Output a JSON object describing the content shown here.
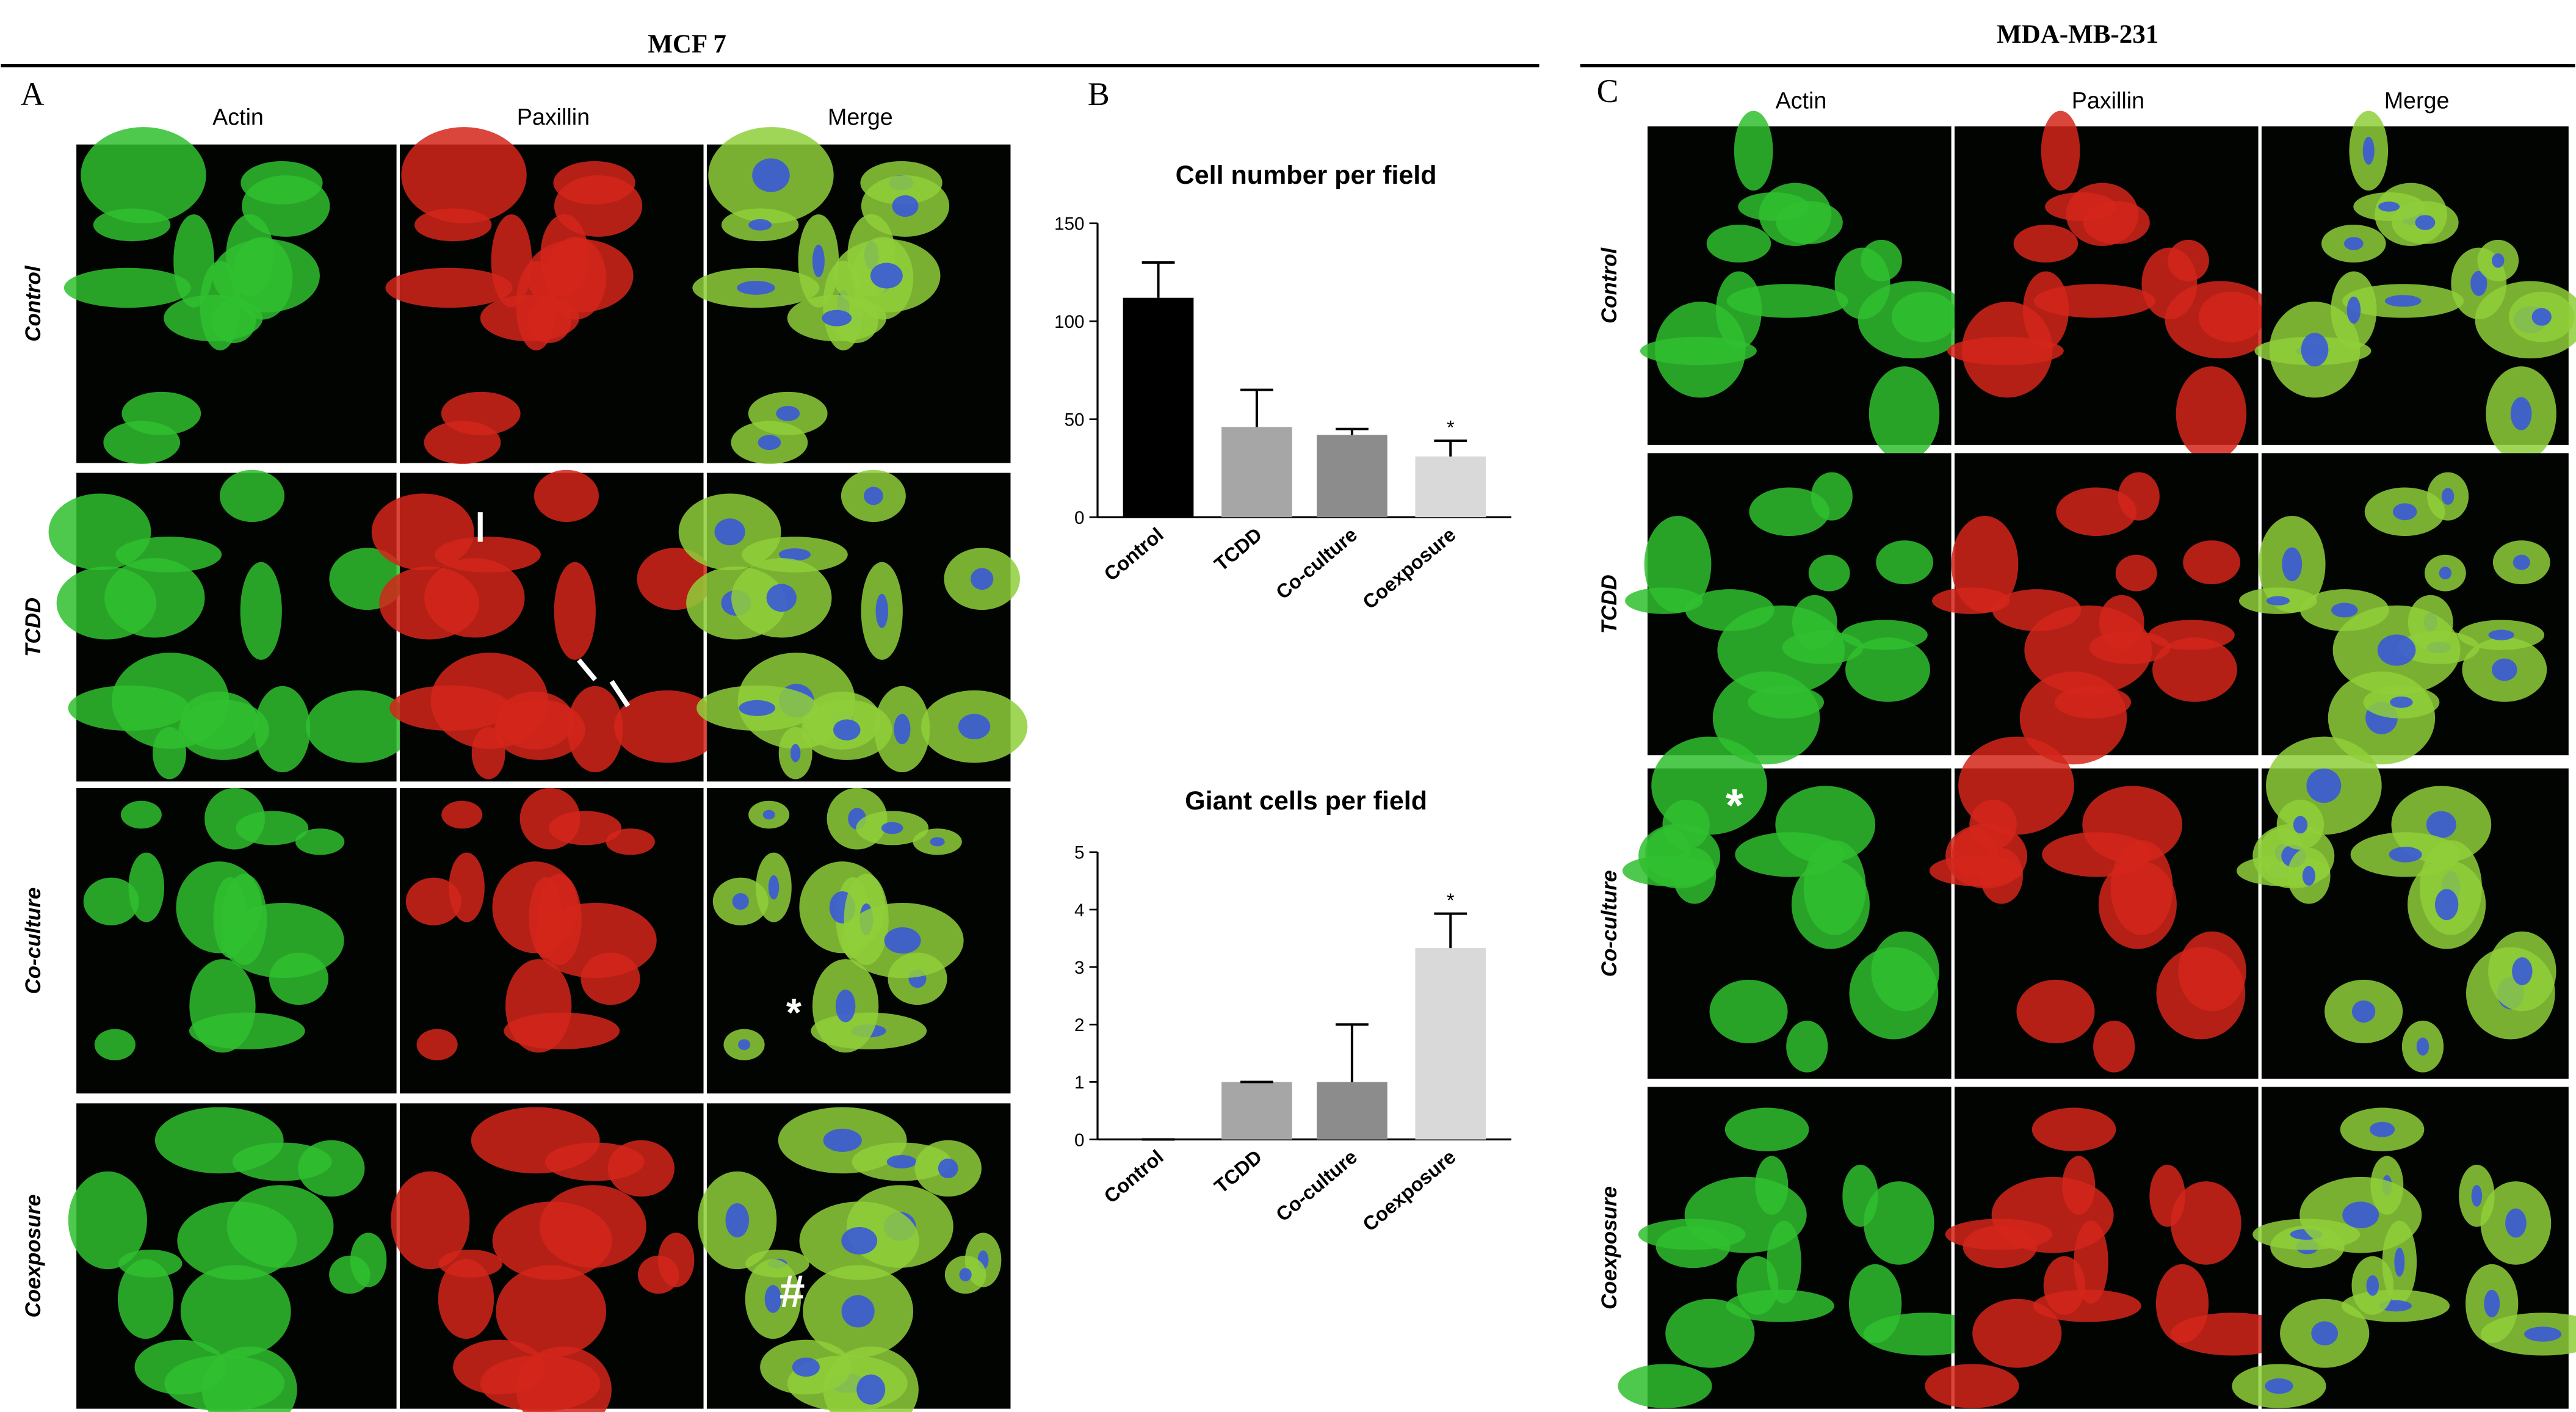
{
  "figure": {
    "mcf7": {
      "title": "MCF 7",
      "panel_label": "A",
      "columns": [
        "Actin",
        "Paxillin",
        "Merge"
      ],
      "rows": [
        "Control",
        "TCDD",
        "Co-culture",
        "Coexposure"
      ],
      "marks": [
        "*",
        "#"
      ]
    },
    "mda": {
      "title": "MDA-MB-231",
      "panel_label": "C",
      "columns": [
        "Actin",
        "Paxillin",
        "Merge"
      ],
      "rows": [
        "Control",
        "TCDD",
        "Co-culture",
        "Coexposure"
      ],
      "marks": [
        "*"
      ]
    },
    "panel_b_label": "B"
  },
  "chart_data": [
    {
      "type": "bar",
      "title": "Cell number per field",
      "categories": [
        "Control",
        "TCDD",
        "Co-culture",
        "Coexposure"
      ],
      "values": [
        112,
        46,
        42,
        31
      ],
      "errors": [
        18,
        19,
        3,
        8
      ],
      "colors": [
        "#000000",
        "#a6a6a6",
        "#8c8c8c",
        "#d9d9d9"
      ],
      "significance_labels": [
        null,
        null,
        null,
        "*"
      ],
      "ylim": [
        0,
        150
      ],
      "yticks": [
        0,
        50,
        100,
        150
      ]
    },
    {
      "type": "bar",
      "title": "Giant cells per field",
      "categories": [
        "Control",
        "TCDD",
        "Co-culture",
        "Coexposure"
      ],
      "values": [
        0,
        1,
        1,
        3.33
      ],
      "errors": [
        0,
        0,
        1,
        0.6
      ],
      "colors": [
        "#000000",
        "#a6a6a6",
        "#8c8c8c",
        "#d9d9d9"
      ],
      "significance_labels": [
        null,
        null,
        null,
        "*"
      ],
      "ylim": [
        0,
        5
      ],
      "yticks": [
        0,
        1,
        2,
        3,
        4,
        5
      ]
    }
  ]
}
